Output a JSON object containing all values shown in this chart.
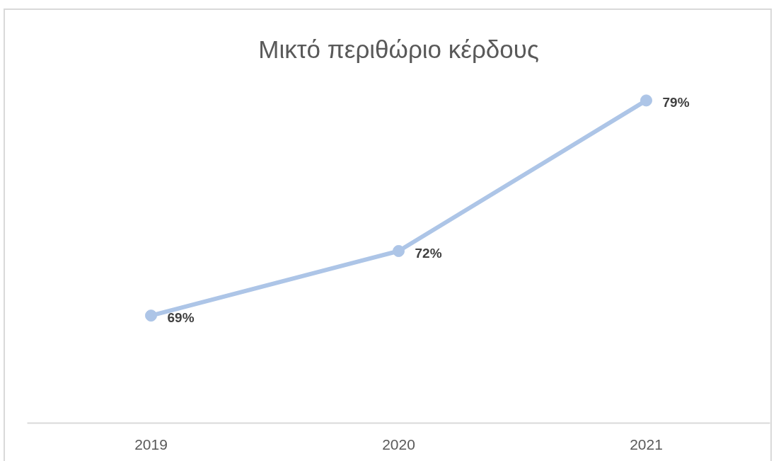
{
  "chart_data": {
    "type": "line",
    "title": "Μικτό περιθώριο κέρδους",
    "categories": [
      "2019",
      "2020",
      "2021"
    ],
    "series": [
      {
        "color": "#adc5e7",
        "values": [
          69,
          72,
          79
        ],
        "value_labels": [
          "69%",
          "72%",
          "79%"
        ]
      }
    ],
    "marker": "circle",
    "line_style": "solid"
  }
}
